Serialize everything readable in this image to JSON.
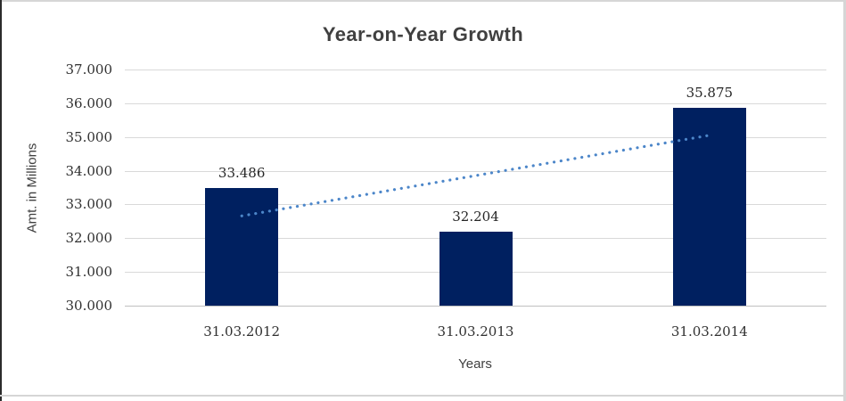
{
  "chart_data": {
    "type": "bar",
    "title": "Year-on-Year Growth",
    "categories": [
      "31.03.2012",
      "31.03.2013",
      "31.03.2014"
    ],
    "values": [
      33.486,
      32.204,
      35.875
    ],
    "value_labels": [
      "33.486",
      "32.204",
      "35.875"
    ],
    "xlabel": "Years",
    "ylabel": "Amt. in Millions",
    "ylim": [
      30,
      37
    ],
    "ytick_step": 1,
    "ytick_labels": [
      "30.000",
      "31.000",
      "32.000",
      "33.000",
      "34.000",
      "35.000",
      "36.000",
      "37.000"
    ],
    "grid": true,
    "legend": false,
    "trendline": {
      "type": "linear",
      "style": "dotted"
    },
    "colors": {
      "bar": "#002060",
      "trendline": "#4C86C9",
      "gridline": "#D9D9D9",
      "axis_line": "#BFBFBF",
      "title_text": "#404040",
      "tick_text": "#303030",
      "data_label_text": "#262626",
      "background": "#FFFFFF"
    }
  }
}
